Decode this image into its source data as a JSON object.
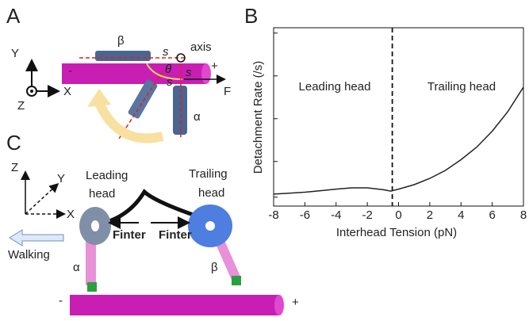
{
  "panel_a": {
    "letter": "A",
    "axis_y": "Y",
    "axis_x": "X",
    "axis_z": "Z",
    "beta": "β",
    "axis": "axis",
    "s_top": "s",
    "theta": "θ",
    "s_mid": "s",
    "s_right": "s",
    "plus": "+",
    "minus": "-",
    "force": "F",
    "alpha": "α"
  },
  "panel_c": {
    "letter": "C",
    "axis_z": "Z",
    "axis_y": "Y",
    "axis_x": "X",
    "leading": [
      "Leading",
      "head"
    ],
    "trailing": [
      "Trailing",
      "head"
    ],
    "f_left": "Finter",
    "f_right": "Finter",
    "walking": "Walking",
    "alpha": "α",
    "beta": "β",
    "minus": "-",
    "plus": "+"
  },
  "chart_data": {
    "type": "line",
    "letter": "B",
    "xlabel": "Interhead Tension (pN)",
    "ylabel": "Detachment Rate (/s)",
    "regions": [
      "Leading head",
      "Trailing head"
    ],
    "divider_x": -0.4,
    "x": [
      -8,
      -7,
      -6,
      -5,
      -4,
      -3,
      -2,
      -1,
      -0.5,
      0,
      1,
      2,
      3,
      4,
      5,
      6,
      7,
      8
    ],
    "series": [
      {
        "color": "#222222",
        "values": [
          0.67,
          0.72,
          0.78,
          0.86,
          0.95,
          1.02,
          1.02,
          0.92,
          0.84,
          0.95,
          1.2,
          1.55,
          2.0,
          2.6,
          3.3,
          4.2,
          5.3,
          6.67
        ]
      }
    ],
    "xlim": [
      -8,
      8
    ],
    "xticks": [
      -8,
      -6,
      -4,
      -2,
      0,
      2,
      4,
      6,
      8
    ],
    "ylim": [
      0,
      10
    ]
  }
}
